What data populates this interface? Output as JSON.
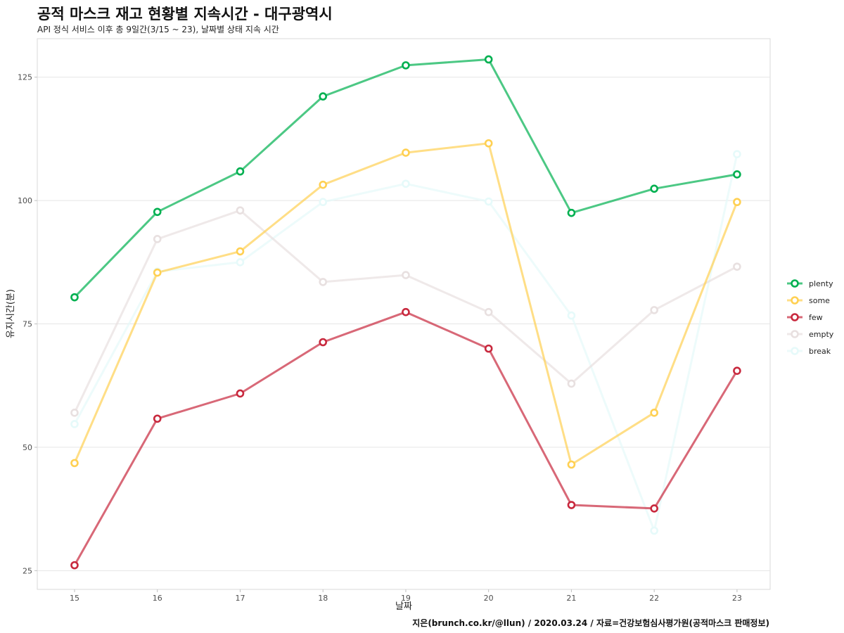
{
  "title": "공적 마스크 재고 현황별 지속시간 - 대구광역시",
  "subtitle": "API 정식 서비스 이후 총 9일간(3/15 ~ 23), 날짜별 상태 지속 시간",
  "caption": "지은(brunch.co.kr/@llun) / 2020.03.24 / 자료=건강보험심사평가원(공적마스크 판매정보)",
  "chart_data": {
    "type": "line",
    "title": "공적 마스크 재고 현황별 지속시간 - 대구광역시",
    "subtitle": "API 정식 서비스 이후 총 9일간(3/15 ~ 23), 날짜별 상태 지속 시간",
    "xlabel": "날짜",
    "ylabel": "유지시간(분)",
    "x": [
      15,
      16,
      17,
      18,
      19,
      20,
      21,
      22,
      23
    ],
    "x_ticks": [
      "15",
      "16",
      "17",
      "18",
      "19",
      "20",
      "21",
      "22",
      "23"
    ],
    "y_ticks": [
      "25",
      "50",
      "75",
      "100",
      "125"
    ],
    "xlim": [
      14.55,
      23.4
    ],
    "ylim": [
      21.2,
      132.8
    ],
    "grid": true,
    "legend_position": "right",
    "series": [
      {
        "name": "plenty",
        "color": "#00b050",
        "values": [
          80.4,
          97.7,
          105.9,
          121.1,
          127.4,
          128.6,
          97.5,
          102.4,
          105.3
        ]
      },
      {
        "name": "some",
        "color": "#ffd052",
        "values": [
          46.8,
          85.4,
          89.7,
          103.2,
          109.7,
          111.6,
          46.5,
          57.0,
          99.7
        ]
      },
      {
        "name": "few",
        "color": "#c8283d",
        "values": [
          26.1,
          55.8,
          60.9,
          71.3,
          77.4,
          70.0,
          38.3,
          37.6,
          65.5
        ]
      },
      {
        "name": "empty",
        "color": "#e8e0e0",
        "values": [
          57.0,
          92.2,
          98.0,
          83.5,
          84.9,
          77.4,
          62.9,
          77.8,
          86.6
        ]
      },
      {
        "name": "break",
        "color": "#e6fafa",
        "values": [
          54.7,
          85.6,
          87.5,
          99.7,
          103.4,
          99.8,
          76.7,
          33.1,
          109.4
        ]
      }
    ]
  }
}
